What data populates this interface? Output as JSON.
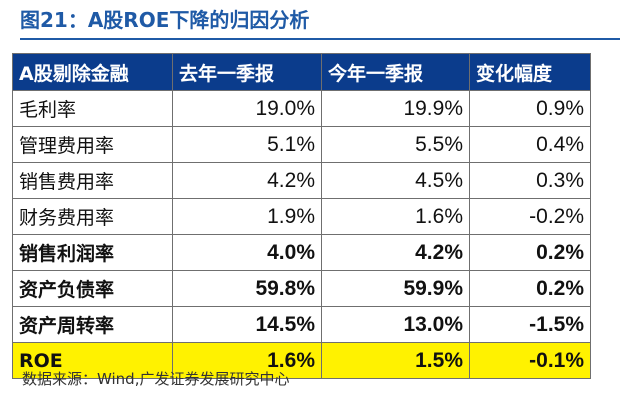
{
  "figure": {
    "title": "图21：A股ROE下降的归因分析",
    "source": "数据来源：Wind,广发证券发展研究中心"
  },
  "table": {
    "headers": [
      "A股剔除金融",
      "去年一季报",
      "今年一季报",
      "变化幅度"
    ],
    "rows": [
      {
        "label": "毛利率",
        "last": "19.0%",
        "this": "19.9%",
        "change": "0.9%"
      },
      {
        "label": "管理费用率",
        "last": "5.1%",
        "this": "5.5%",
        "change": "0.4%"
      },
      {
        "label": "销售费用率",
        "last": "4.2%",
        "this": "4.5%",
        "change": "0.3%"
      },
      {
        "label": "财务费用率",
        "last": "1.9%",
        "this": "1.6%",
        "change": "-0.2%"
      },
      {
        "label": "销售利润率",
        "last": "4.0%",
        "this": "4.2%",
        "change": "0.2%"
      },
      {
        "label": "资产负债率",
        "last": "59.8%",
        "this": "59.9%",
        "change": "0.2%"
      },
      {
        "label": "资产周转率",
        "last": "14.5%",
        "this": "13.0%",
        "change": "-1.5%"
      },
      {
        "label": "ROE",
        "last": "1.6%",
        "this": "1.5%",
        "change": "-0.1%"
      }
    ]
  },
  "colors": {
    "header_bg": "#0b3c8c",
    "title_text": "#1f5aa6",
    "highlight_row": "#fff200"
  }
}
